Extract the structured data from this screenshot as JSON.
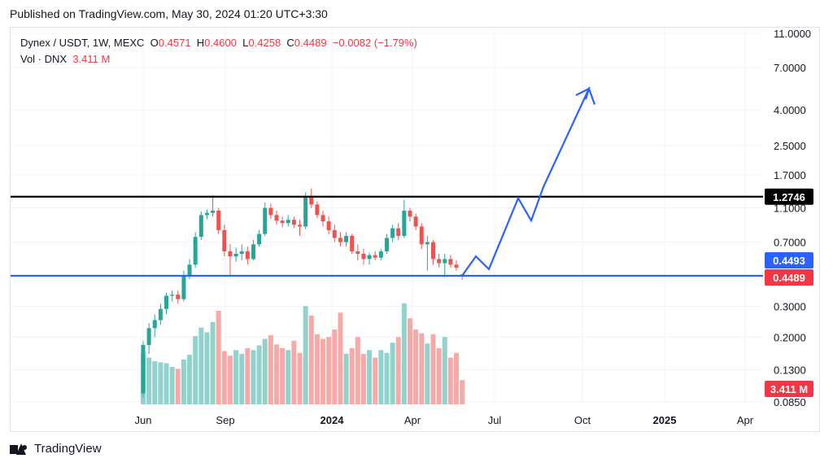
{
  "header": {
    "published": "Published on TradingView.com, May 30, 2024 01:20 UTC+3:30"
  },
  "legend": {
    "symbol": "Dynex / USDT, 1W, MEXC",
    "o_label": "O",
    "o_value": "0.4571",
    "h_label": "H",
    "h_value": "0.4600",
    "l_label": "L",
    "l_value": "0.4258",
    "c_label": "C",
    "c_value": "0.4489",
    "change": "−0.0082 (−1.79%)",
    "vol_label": "Vol · DNX",
    "vol_value": "3.411 M"
  },
  "footer": {
    "brand": "TradingView"
  },
  "colors": {
    "up": "#26a69a",
    "down": "#ef5350",
    "up_vol": "#92d2cc",
    "down_vol": "#f7a9a7",
    "projection": "#2962ff",
    "resistance": "#000000",
    "support": "#2962ff",
    "grid": "#f0f3fa"
  },
  "chart_data": {
    "type": "candlestick",
    "log_scale": true,
    "ylim": [
      0.085,
      12
    ],
    "y_ticks": [
      "11.0000",
      "7.0000",
      "4.0000",
      "2.5000",
      "1.7000",
      "1.1000",
      "0.7000",
      "0.3000",
      "0.2000",
      "0.1300",
      "0.0850"
    ],
    "x_ticks": [
      "Jun",
      "Sep",
      "2024",
      "Apr",
      "Jul",
      "Oct",
      "2025",
      "Apr"
    ],
    "x_ticks_bold": [
      "2024",
      "2025"
    ],
    "grid": true,
    "horizontal_lines": [
      {
        "name": "resistance",
        "value": 1.2746,
        "label": "1.2746"
      },
      {
        "name": "support",
        "value": 0.4489,
        "label": ""
      }
    ],
    "price_labels": [
      {
        "value": "0.4493",
        "kind": "projection"
      },
      {
        "value": "0.4489",
        "kind": "last"
      },
      {
        "value": "3.411 M",
        "kind": "volume"
      }
    ],
    "candles": [
      {
        "o": 0.095,
        "h": 0.19,
        "l": 0.09,
        "c": 0.18,
        "v": 0.55
      },
      {
        "o": 0.18,
        "h": 0.24,
        "l": 0.16,
        "c": 0.225,
        "v": 0.5
      },
      {
        "o": 0.225,
        "h": 0.27,
        "l": 0.2,
        "c": 0.25,
        "v": 0.46
      },
      {
        "o": 0.25,
        "h": 0.31,
        "l": 0.235,
        "c": 0.29,
        "v": 0.45
      },
      {
        "o": 0.29,
        "h": 0.36,
        "l": 0.27,
        "c": 0.345,
        "v": 0.44
      },
      {
        "o": 0.345,
        "h": 0.37,
        "l": 0.32,
        "c": 0.35,
        "v": 0.4
      },
      {
        "o": 0.35,
        "h": 0.37,
        "l": 0.31,
        "c": 0.33,
        "v": 0.38
      },
      {
        "o": 0.33,
        "h": 0.48,
        "l": 0.32,
        "c": 0.45,
        "v": 0.48
      },
      {
        "o": 0.45,
        "h": 0.56,
        "l": 0.43,
        "c": 0.52,
        "v": 0.53
      },
      {
        "o": 0.52,
        "h": 0.8,
        "l": 0.5,
        "c": 0.75,
        "v": 0.73
      },
      {
        "o": 0.75,
        "h": 1.05,
        "l": 0.72,
        "c": 1.0,
        "v": 0.82
      },
      {
        "o": 1.0,
        "h": 1.08,
        "l": 0.95,
        "c": 1.03,
        "v": 0.77
      },
      {
        "o": 1.03,
        "h": 1.3,
        "l": 0.98,
        "c": 1.06,
        "v": 0.88
      },
      {
        "o": 1.06,
        "h": 1.1,
        "l": 0.78,
        "c": 0.82,
        "v": 1.0
      },
      {
        "o": 0.82,
        "h": 0.88,
        "l": 0.58,
        "c": 0.62,
        "v": 0.57
      },
      {
        "o": 0.62,
        "h": 0.68,
        "l": 0.45,
        "c": 0.58,
        "v": 0.52
      },
      {
        "o": 0.58,
        "h": 0.65,
        "l": 0.54,
        "c": 0.6,
        "v": 0.58
      },
      {
        "o": 0.6,
        "h": 0.68,
        "l": 0.55,
        "c": 0.62,
        "v": 0.54
      },
      {
        "o": 0.62,
        "h": 0.66,
        "l": 0.52,
        "c": 0.56,
        "v": 0.6
      },
      {
        "o": 0.56,
        "h": 0.72,
        "l": 0.55,
        "c": 0.68,
        "v": 0.58
      },
      {
        "o": 0.68,
        "h": 0.82,
        "l": 0.66,
        "c": 0.78,
        "v": 0.63
      },
      {
        "o": 0.78,
        "h": 1.18,
        "l": 0.76,
        "c": 1.1,
        "v": 0.7
      },
      {
        "o": 1.1,
        "h": 1.16,
        "l": 0.95,
        "c": 1.0,
        "v": 0.74
      },
      {
        "o": 1.0,
        "h": 1.06,
        "l": 0.88,
        "c": 0.93,
        "v": 0.64
      },
      {
        "o": 0.93,
        "h": 0.98,
        "l": 0.85,
        "c": 0.9,
        "v": 0.6
      },
      {
        "o": 0.9,
        "h": 1.0,
        "l": 0.86,
        "c": 0.94,
        "v": 0.58
      },
      {
        "o": 0.94,
        "h": 0.98,
        "l": 0.84,
        "c": 0.88,
        "v": 0.68
      },
      {
        "o": 0.88,
        "h": 0.94,
        "l": 0.76,
        "c": 0.86,
        "v": 0.55
      },
      {
        "o": 0.86,
        "h": 1.35,
        "l": 0.83,
        "c": 1.28,
        "v": 1.05
      },
      {
        "o": 1.28,
        "h": 1.42,
        "l": 1.1,
        "c": 1.15,
        "v": 0.95
      },
      {
        "o": 1.15,
        "h": 1.2,
        "l": 0.96,
        "c": 1.0,
        "v": 0.75
      },
      {
        "o": 1.0,
        "h": 1.06,
        "l": 0.86,
        "c": 0.92,
        "v": 0.7
      },
      {
        "o": 0.92,
        "h": 0.98,
        "l": 0.78,
        "c": 0.82,
        "v": 0.72
      },
      {
        "o": 0.82,
        "h": 0.88,
        "l": 0.7,
        "c": 0.74,
        "v": 0.8
      },
      {
        "o": 0.74,
        "h": 0.8,
        "l": 0.66,
        "c": 0.7,
        "v": 0.98
      },
      {
        "o": 0.7,
        "h": 0.8,
        "l": 0.66,
        "c": 0.76,
        "v": 0.54
      },
      {
        "o": 0.76,
        "h": 0.78,
        "l": 0.6,
        "c": 0.62,
        "v": 0.6
      },
      {
        "o": 0.62,
        "h": 0.68,
        "l": 0.55,
        "c": 0.6,
        "v": 0.72
      },
      {
        "o": 0.6,
        "h": 0.64,
        "l": 0.52,
        "c": 0.56,
        "v": 0.54
      },
      {
        "o": 0.56,
        "h": 0.61,
        "l": 0.52,
        "c": 0.59,
        "v": 0.58
      },
      {
        "o": 0.59,
        "h": 0.62,
        "l": 0.55,
        "c": 0.57,
        "v": 0.5
      },
      {
        "o": 0.57,
        "h": 0.64,
        "l": 0.55,
        "c": 0.62,
        "v": 0.58
      },
      {
        "o": 0.62,
        "h": 0.78,
        "l": 0.6,
        "c": 0.74,
        "v": 0.55
      },
      {
        "o": 0.74,
        "h": 0.88,
        "l": 0.7,
        "c": 0.84,
        "v": 0.66
      },
      {
        "o": 0.84,
        "h": 0.9,
        "l": 0.72,
        "c": 0.76,
        "v": 0.72
      },
      {
        "o": 0.76,
        "h": 1.22,
        "l": 0.74,
        "c": 1.06,
        "v": 1.08
      },
      {
        "o": 1.06,
        "h": 1.1,
        "l": 0.92,
        "c": 0.98,
        "v": 0.92
      },
      {
        "o": 0.98,
        "h": 1.02,
        "l": 0.82,
        "c": 0.86,
        "v": 0.8
      },
      {
        "o": 0.86,
        "h": 0.9,
        "l": 0.64,
        "c": 0.68,
        "v": 0.76
      },
      {
        "o": 0.68,
        "h": 0.76,
        "l": 0.48,
        "c": 0.7,
        "v": 0.65
      },
      {
        "o": 0.7,
        "h": 0.72,
        "l": 0.52,
        "c": 0.56,
        "v": 0.75
      },
      {
        "o": 0.56,
        "h": 0.6,
        "l": 0.5,
        "c": 0.53,
        "v": 0.6
      },
      {
        "o": 0.53,
        "h": 0.6,
        "l": 0.44,
        "c": 0.56,
        "v": 0.72
      },
      {
        "o": 0.56,
        "h": 0.59,
        "l": 0.5,
        "c": 0.52,
        "v": 0.5
      },
      {
        "o": 0.52,
        "h": 0.55,
        "l": 0.48,
        "c": 0.5,
        "v": 0.55
      },
      {
        "o": 0.4571,
        "h": 0.46,
        "l": 0.4258,
        "c": 0.4489,
        "v": 0.26
      }
    ],
    "projection_path": [
      {
        "x": "Jun 2024",
        "y": 0.4489
      },
      {
        "x": "Jun 2024",
        "y": 0.58
      },
      {
        "x": "Jul 2024",
        "y": 0.49
      },
      {
        "x": "Aug 2024",
        "y": 1.25
      },
      {
        "x": "Aug 2024",
        "y": 0.93
      },
      {
        "x": "Sep 2024",
        "y": 1.45
      },
      {
        "x": "Sep 2024",
        "y": 5.3
      },
      {
        "x": "Oct 2024",
        "y": 4.3
      }
    ]
  }
}
